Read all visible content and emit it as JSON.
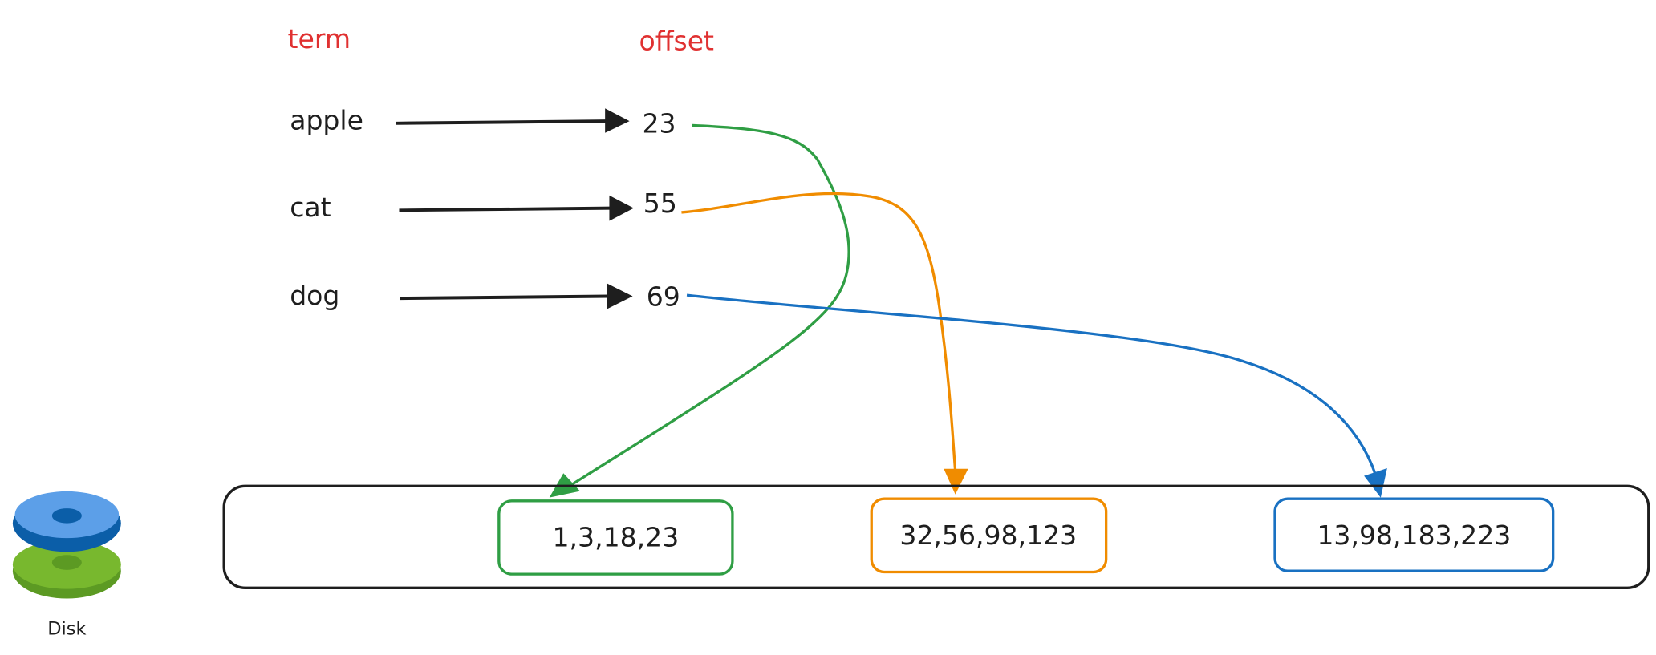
{
  "headers": {
    "term": "term",
    "offset": "offset",
    "color": "#e03131"
  },
  "rows": [
    {
      "term": "apple",
      "offset": "23"
    },
    {
      "term": "cat",
      "offset": "55"
    },
    {
      "term": "dog",
      "offset": "69"
    }
  ],
  "postings": [
    {
      "values": "1,3,18,23",
      "color": "#2f9e44"
    },
    {
      "values": "32,56,98,123",
      "color": "#f08c00"
    },
    {
      "values": "13,98,183,223",
      "color": "#1971c2"
    }
  ],
  "disk": {
    "label": "Disk",
    "icon": "disk-icon"
  }
}
